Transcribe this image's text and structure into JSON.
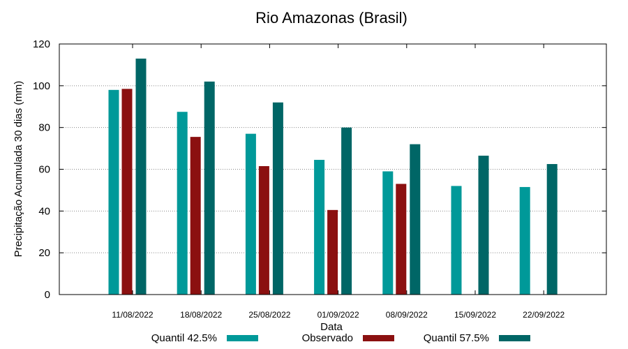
{
  "chart_data": {
    "type": "bar",
    "title": "Rio Amazonas (Brasil)",
    "xlabel": "Data",
    "ylabel": "Precipitação Acumulada 30 dias (mm)",
    "ylim": [
      0,
      120
    ],
    "yticks": [
      0,
      20,
      40,
      60,
      80,
      100,
      120
    ],
    "grid": true,
    "legend_position": "bottom",
    "categories": [
      "11/08/2022",
      "18/08/2022",
      "25/08/2022",
      "01/09/2022",
      "08/09/2022",
      "15/09/2022",
      "22/09/2022"
    ],
    "series": [
      {
        "name": "Quantil 42.5%",
        "color": "#009999",
        "values": [
          98,
          87.5,
          77,
          64.5,
          59,
          52,
          51.5
        ]
      },
      {
        "name": "Observado",
        "color": "#8b1010",
        "values": [
          98.5,
          75.5,
          61.5,
          40.5,
          53,
          null,
          null
        ]
      },
      {
        "name": "Quantil 57.5%",
        "color": "#006666",
        "values": [
          113,
          102,
          92,
          80,
          72,
          66.5,
          62.5
        ]
      }
    ]
  }
}
